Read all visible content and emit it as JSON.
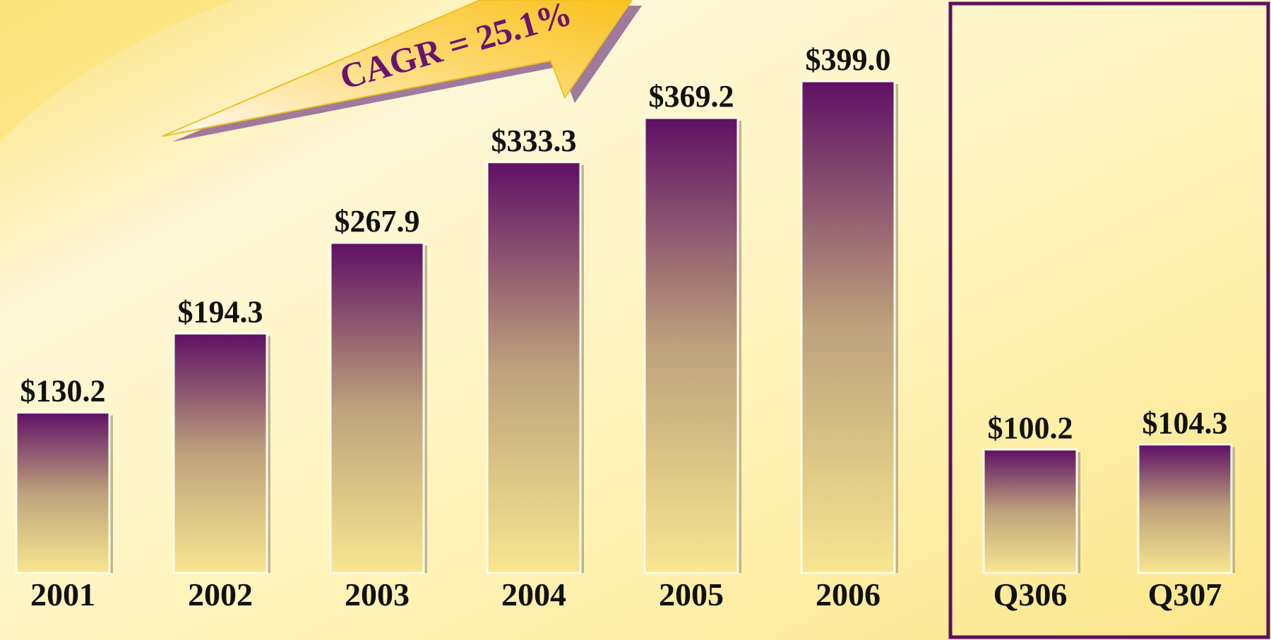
{
  "chart_data": {
    "type": "bar",
    "categories": [
      "2001",
      "2002",
      "2003",
      "2004",
      "2005",
      "2006",
      "Q306",
      "Q307"
    ],
    "values": [
      130.2,
      194.3,
      267.9,
      333.3,
      369.2,
      399.0,
      100.2,
      104.3
    ],
    "value_labels": [
      "$130.2",
      "$194.3",
      "$267.9",
      "$333.3",
      "$369.2",
      "$399.0",
      "$100.2",
      "$104.3"
    ],
    "color": "#5f1065",
    "annotations": [
      "CAGR = 25.1%"
    ]
  }
}
